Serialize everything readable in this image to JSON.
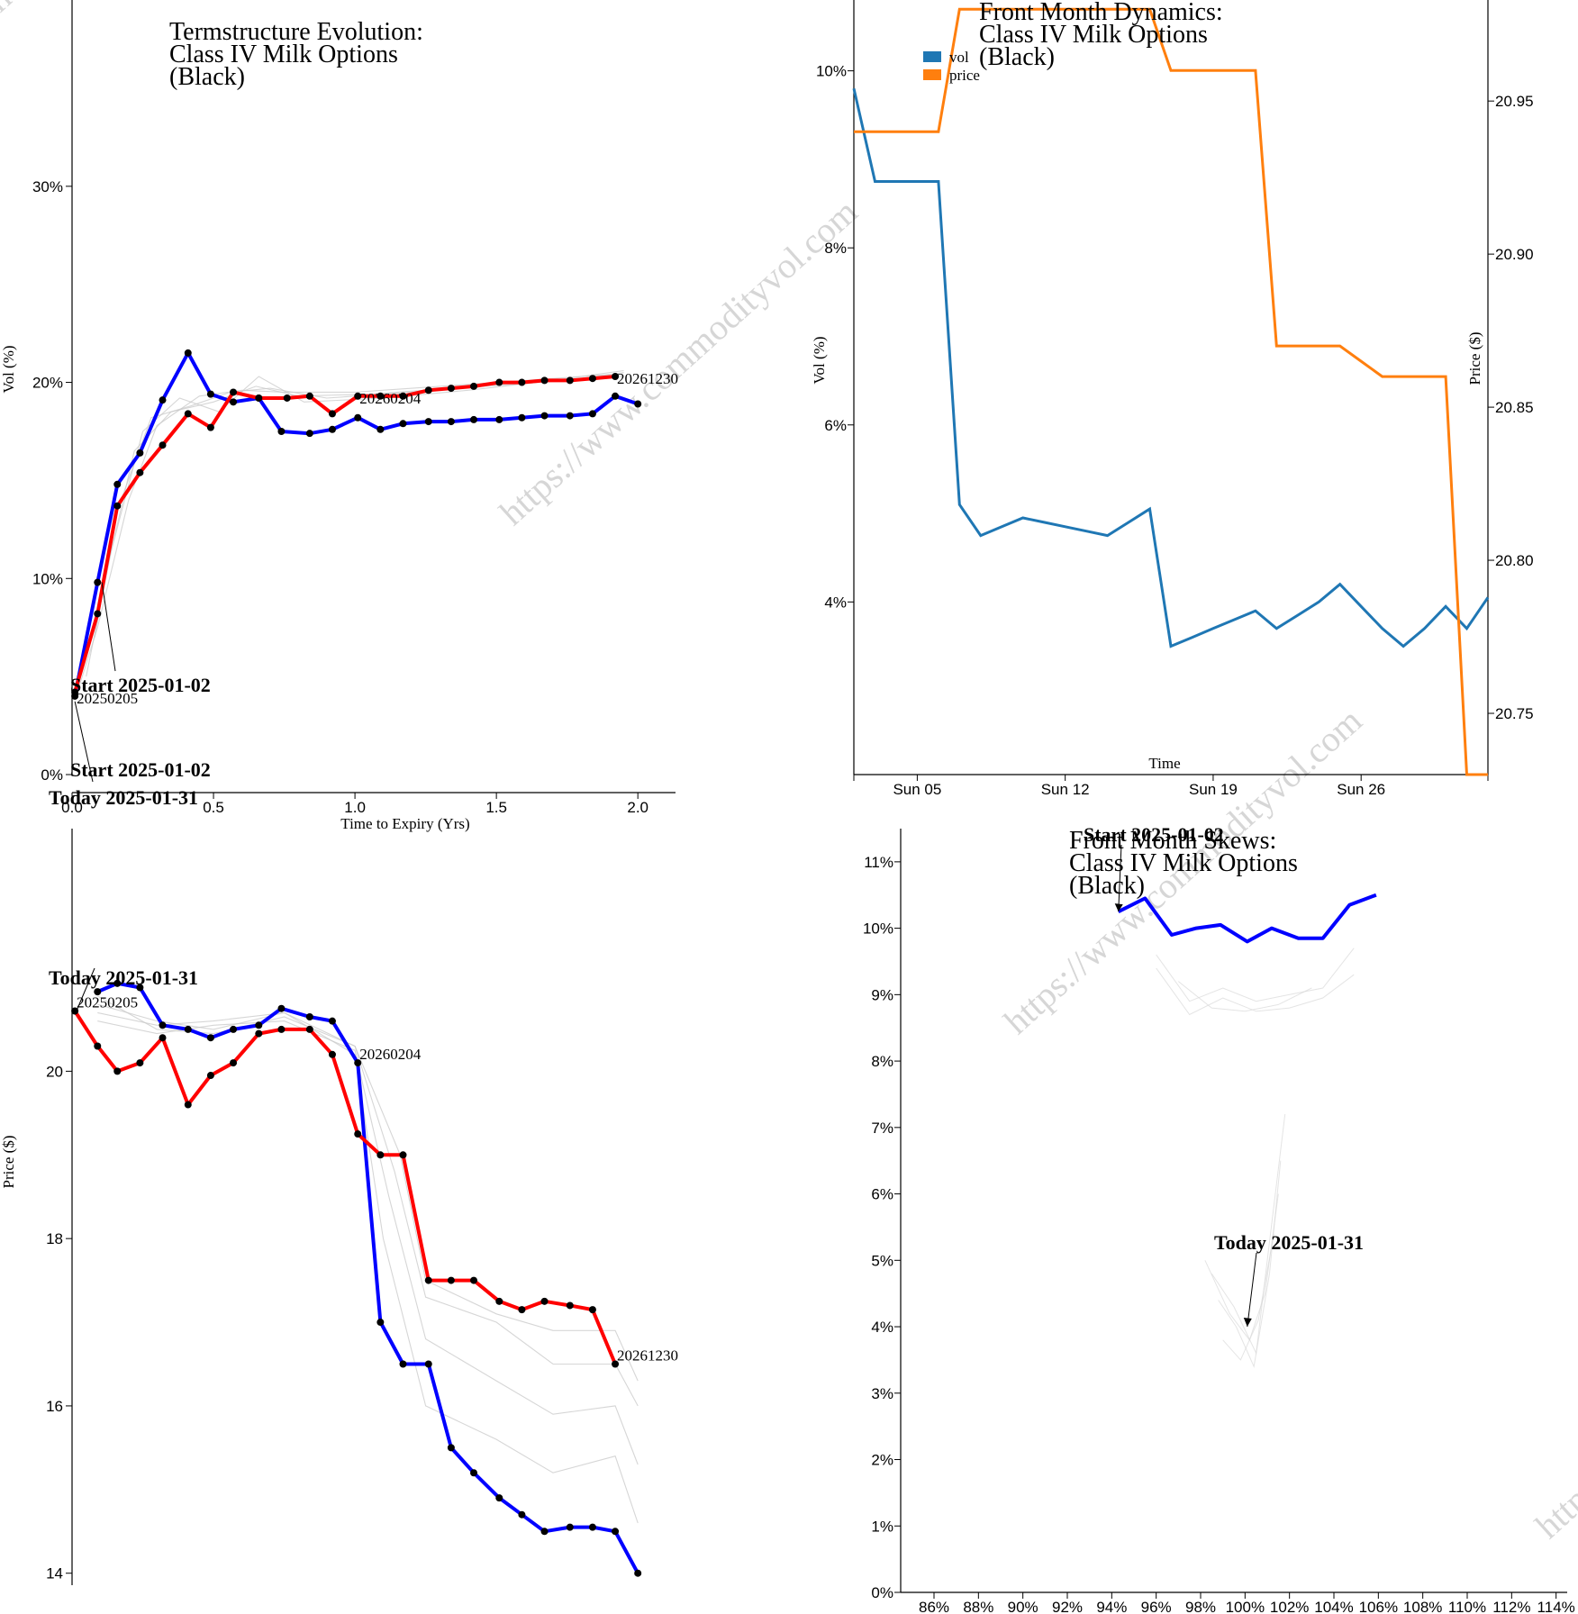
{
  "watermark": "https://www.commodityvol.com",
  "colors": {
    "start": "#0000ff",
    "today": "#ff0000",
    "ghost": "#c8c8c8",
    "vol": "#1f77b4",
    "price": "#ff7f0e"
  },
  "chart_data": [
    {
      "id": "termstructure_vol",
      "type": "line",
      "title": [
        "Termstructure Evolution:",
        "Class IV Milk Options",
        "(Black)"
      ],
      "xlabel": "Time to Expiry (Yrs)",
      "ylabel": "Vol (%)",
      "xlim": [
        0,
        2.2
      ],
      "ylim": [
        0,
        39.5
      ],
      "xticks": [
        {
          "v": 0,
          "label": "0.0"
        },
        {
          "v": 0.5,
          "label": "0.5"
        },
        {
          "v": 1.0,
          "label": "1.0"
        },
        {
          "v": 1.5,
          "label": "1.5"
        },
        {
          "v": 2.0,
          "label": "2.0"
        }
      ],
      "yticks": [
        {
          "v": 0,
          "label": "0%"
        },
        {
          "v": 10,
          "label": "10%"
        },
        {
          "v": 20,
          "label": "20%"
        },
        {
          "v": 30,
          "label": "30%"
        }
      ],
      "series": [
        {
          "role": "start",
          "x": [
            0.01,
            0.09,
            0.16,
            0.24,
            0.32,
            0.41,
            0.49,
            0.57,
            0.66,
            0.74,
            0.84,
            0.92,
            1.01,
            1.09,
            1.17,
            1.26,
            1.34,
            1.42,
            1.51,
            1.59,
            1.67,
            1.76,
            1.84,
            1.92,
            2.0
          ],
          "y": [
            4.0,
            9.8,
            14.8,
            16.4,
            19.1,
            21.5,
            19.4,
            19.0,
            19.2,
            17.5,
            17.4,
            17.6,
            18.2,
            17.6,
            17.9,
            18.0,
            18.0,
            18.1,
            18.1,
            18.2,
            18.3,
            18.3,
            18.4,
            19.3,
            18.9
          ]
        },
        {
          "role": "today",
          "x": [
            0.01,
            0.09,
            0.16,
            0.24,
            0.32,
            0.41,
            0.49,
            0.57,
            0.66,
            0.76,
            0.84,
            0.92,
            1.01,
            1.09,
            1.17,
            1.26,
            1.34,
            1.42,
            1.51,
            1.59,
            1.67,
            1.76,
            1.84,
            1.92
          ],
          "y": [
            4.2,
            8.2,
            13.7,
            15.4,
            16.8,
            18.4,
            17.7,
            19.5,
            19.2,
            19.2,
            19.3,
            18.4,
            19.3,
            19.3,
            19.3,
            19.6,
            19.7,
            19.8,
            20.0,
            20.0,
            20.1,
            20.1,
            20.2,
            20.3
          ]
        }
      ],
      "ghosts": [
        {
          "x": [
            0.01,
            0.09,
            0.2,
            0.3,
            0.45,
            0.6,
            0.75,
            1.0,
            1.3,
            1.6,
            1.9
          ],
          "y": [
            3.8,
            7.5,
            14.0,
            17.8,
            19.3,
            19.6,
            19.5,
            19.5,
            19.8,
            20.1,
            20.4
          ]
        },
        {
          "x": [
            0.01,
            0.1,
            0.22,
            0.35,
            0.5,
            0.65,
            0.8,
            1.05,
            1.35,
            1.65,
            1.95
          ],
          "y": [
            4.0,
            9.0,
            16.5,
            18.5,
            19.0,
            19.8,
            19.3,
            19.4,
            19.7,
            20.0,
            20.3
          ]
        },
        {
          "x": [
            0.05,
            0.14,
            0.25,
            0.38,
            0.52,
            0.66,
            0.82,
            1.1,
            1.4,
            1.7,
            1.95
          ],
          "y": [
            5.0,
            11.5,
            17.5,
            19.2,
            18.5,
            20.3,
            19.0,
            19.2,
            19.6,
            20.1,
            20.6
          ]
        },
        {
          "x": [
            0.08,
            0.16,
            0.28,
            0.42,
            0.56,
            0.7,
            0.9,
            1.2,
            1.5,
            1.8,
            1.95
          ],
          "y": [
            7.0,
            13.5,
            18.2,
            18.8,
            19.5,
            19.7,
            19.2,
            19.5,
            19.9,
            20.2,
            20.5
          ]
        }
      ],
      "annotations": [
        {
          "text": "Start 2025-01-02",
          "x": 0.01,
          "y": 4.0
        },
        {
          "text": "Start 2025-01-02",
          "x": 0.09,
          "y": 9.8
        },
        {
          "text": "Today 2025-01-31",
          "x": 0.01,
          "y": 4.2
        }
      ],
      "labels": [
        {
          "text": "20250205",
          "x": 0.01,
          "y": 4.0
        },
        {
          "text": "20260204",
          "x": 1.01,
          "y": 19.3
        },
        {
          "text": "20261230",
          "x": 1.92,
          "y": 20.3
        }
      ]
    },
    {
      "id": "termstructure_price",
      "type": "line",
      "ylabel": "Price ($)",
      "xlim": [
        0,
        2.2
      ],
      "ylim": [
        13.9,
        22.9
      ],
      "yticks": [
        {
          "v": 14,
          "label": "14"
        },
        {
          "v": 16,
          "label": "16"
        },
        {
          "v": 18,
          "label": "18"
        },
        {
          "v": 20,
          "label": "20"
        }
      ],
      "series": [
        {
          "role": "start",
          "x": [
            0.09,
            0.16,
            0.24,
            0.32,
            0.41,
            0.49,
            0.57,
            0.66,
            0.74,
            0.84,
            0.92,
            1.01,
            1.09,
            1.17,
            1.26,
            1.34,
            1.42,
            1.51,
            1.59,
            1.67,
            1.76,
            1.84,
            1.92,
            2.0
          ],
          "y": [
            20.95,
            21.05,
            21.0,
            20.55,
            20.5,
            20.4,
            20.5,
            20.55,
            20.75,
            20.65,
            20.6,
            20.1,
            17.0,
            16.5,
            16.5,
            15.5,
            15.2,
            14.9,
            14.7,
            14.5,
            14.55,
            14.55,
            14.5,
            14.0
          ]
        },
        {
          "role": "today",
          "x": [
            0.01,
            0.09,
            0.16,
            0.24,
            0.32,
            0.41,
            0.49,
            0.57,
            0.66,
            0.74,
            0.84,
            0.92,
            1.01,
            1.09,
            1.17,
            1.26,
            1.34,
            1.42,
            1.51,
            1.59,
            1.67,
            1.76,
            1.84,
            1.92
          ],
          "y": [
            20.72,
            20.3,
            20.0,
            20.1,
            20.4,
            19.6,
            19.95,
            20.1,
            20.45,
            20.5,
            20.5,
            20.2,
            19.25,
            19.0,
            19.0,
            17.5,
            17.5,
            17.5,
            17.25,
            17.15,
            17.25,
            17.2,
            17.15,
            16.5
          ]
        }
      ],
      "ghosts": [
        {
          "x": [
            0.09,
            0.3,
            0.5,
            0.75,
            1.0,
            1.1,
            1.25,
            1.5,
            1.7,
            1.92,
            2.0
          ],
          "y": [
            20.8,
            20.6,
            20.5,
            20.7,
            20.2,
            18.0,
            16.0,
            15.6,
            15.2,
            15.4,
            14.6
          ]
        },
        {
          "x": [
            0.09,
            0.3,
            0.5,
            0.75,
            1.0,
            1.12,
            1.25,
            1.5,
            1.7,
            1.92,
            2.0
          ],
          "y": [
            20.6,
            20.45,
            20.55,
            20.6,
            20.25,
            18.5,
            16.8,
            16.3,
            15.9,
            16.0,
            15.3
          ]
        },
        {
          "x": [
            0.09,
            0.3,
            0.5,
            0.75,
            1.0,
            1.14,
            1.25,
            1.5,
            1.7,
            1.92,
            2.0
          ],
          "y": [
            20.9,
            20.5,
            20.45,
            20.65,
            20.3,
            18.8,
            17.3,
            17.0,
            16.5,
            16.5,
            16.0
          ]
        },
        {
          "x": [
            0.09,
            0.3,
            0.5,
            0.75,
            1.0,
            1.16,
            1.25,
            1.5,
            1.7,
            1.92,
            2.0
          ],
          "y": [
            20.7,
            20.55,
            20.6,
            20.7,
            20.3,
            19.0,
            17.5,
            17.1,
            16.9,
            16.9,
            16.3
          ]
        }
      ],
      "annotations": [
        {
          "text": "Today 2025-01-31",
          "x": 0.01,
          "y": 20.72
        }
      ],
      "labels": [
        {
          "text": "20250205",
          "x": 0.01,
          "y": 20.72
        },
        {
          "text": "20260204",
          "x": 1.01,
          "y": 20.1
        },
        {
          "text": "20261230",
          "x": 1.92,
          "y": 16.5
        }
      ]
    },
    {
      "id": "front_month_dynamics",
      "type": "line",
      "title": [
        "Front Month Dynamics:",
        "Class IV Milk Options",
        "(Black)"
      ],
      "xlabel": "Time",
      "ylabel": "Vol (%)",
      "y2label": "Price ($)",
      "xlim": [
        1,
        31
      ],
      "ylim": [
        2.05,
        10.8
      ],
      "y2lim": [
        20.73,
        20.983
      ],
      "xticks": [
        {
          "v": 4,
          "label": "Sun 05"
        },
        {
          "v": 11,
          "label": "Sun 12"
        },
        {
          "v": 18,
          "label": "Sun 19"
        },
        {
          "v": 25,
          "label": "Sun 26"
        }
      ],
      "yticks": [
        {
          "v": 4,
          "label": "4%"
        },
        {
          "v": 6,
          "label": "6%"
        },
        {
          "v": 8,
          "label": "8%"
        },
        {
          "v": 10,
          "label": "10%"
        }
      ],
      "y2ticks": [
        {
          "v": 20.75,
          "label": "20.75"
        },
        {
          "v": 20.8,
          "label": "20.80"
        },
        {
          "v": 20.85,
          "label": "20.85"
        },
        {
          "v": 20.9,
          "label": "20.90"
        },
        {
          "v": 20.95,
          "label": "20.95"
        }
      ],
      "legend": [
        {
          "name": "vol",
          "color": "#1f77b4"
        },
        {
          "name": "price",
          "color": "#ff7f0e"
        }
      ],
      "series": [
        {
          "name": "vol",
          "x": [
            1,
            2,
            3,
            4,
            5,
            6,
            7,
            8,
            9,
            10,
            11,
            12,
            13,
            14,
            15,
            16,
            17,
            18,
            19,
            20,
            21,
            22,
            23,
            24,
            25,
            26,
            27,
            28,
            29,
            30,
            31
          ],
          "y": [
            9.8,
            8.75,
            8.75,
            8.75,
            8.75,
            5.1,
            4.75,
            4.85,
            4.95,
            4.9,
            4.85,
            4.8,
            4.75,
            4.9,
            5.05,
            3.5,
            3.6,
            3.7,
            3.8,
            3.9,
            3.7,
            3.85,
            4.0,
            4.2,
            3.95,
            3.7,
            3.5,
            3.7,
            3.95,
            3.7,
            4.05
          ]
        },
        {
          "name": "price",
          "x": [
            1,
            2,
            3,
            4,
            5,
            6,
            7,
            8,
            9,
            10,
            11,
            12,
            13,
            14,
            15,
            16,
            17,
            18,
            19,
            20,
            21,
            22,
            23,
            24,
            25,
            26,
            27,
            28,
            29,
            30,
            31
          ],
          "y": [
            20.94,
            20.94,
            20.94,
            20.94,
            20.94,
            20.98,
            20.98,
            20.98,
            20.98,
            20.98,
            20.98,
            20.98,
            20.98,
            20.98,
            20.98,
            20.96,
            20.96,
            20.96,
            20.96,
            20.96,
            20.87,
            20.87,
            20.87,
            20.87,
            20.865,
            20.86,
            20.86,
            20.86,
            20.86,
            20.73,
            20.73
          ]
        }
      ]
    },
    {
      "id": "front_month_skews",
      "type": "line",
      "title": [
        "Front Month Skews:",
        "Class IV Milk Options",
        "(Black)"
      ],
      "xlim": [
        84.5,
        114.5
      ],
      "ylim": [
        0,
        11.5
      ],
      "xticks": [
        {
          "v": 86,
          "label": "86%"
        },
        {
          "v": 88,
          "label": "88%"
        },
        {
          "v": 90,
          "label": "90%"
        },
        {
          "v": 92,
          "label": "92%"
        },
        {
          "v": 94,
          "label": "94%"
        },
        {
          "v": 96,
          "label": "96%"
        },
        {
          "v": 98,
          "label": "98%"
        },
        {
          "v": 100,
          "label": "100%"
        },
        {
          "v": 102,
          "label": "102%"
        },
        {
          "v": 104,
          "label": "104%"
        },
        {
          "v": 106,
          "label": "106%"
        },
        {
          "v": 108,
          "label": "108%"
        },
        {
          "v": 110,
          "label": "110%"
        },
        {
          "v": 112,
          "label": "112%"
        },
        {
          "v": 114,
          "label": "114%"
        }
      ],
      "yticks": [
        {
          "v": 0,
          "label": "0%"
        },
        {
          "v": 1,
          "label": "1%"
        },
        {
          "v": 2,
          "label": "2%"
        },
        {
          "v": 3,
          "label": "3%"
        },
        {
          "v": 4,
          "label": "4%"
        },
        {
          "v": 5,
          "label": "5%"
        },
        {
          "v": 6,
          "label": "6%"
        },
        {
          "v": 7,
          "label": "7%"
        },
        {
          "v": 8,
          "label": "8%"
        },
        {
          "v": 9,
          "label": "9%"
        },
        {
          "v": 10,
          "label": "10%"
        },
        {
          "v": 11,
          "label": "11%"
        }
      ],
      "series": [
        {
          "role": "start",
          "x": [
            94.3,
            95.5,
            96.7,
            97.8,
            98.9,
            100.1,
            101.2,
            102.4,
            103.5,
            104.7,
            105.9
          ],
          "y": [
            10.25,
            10.45,
            9.9,
            10.0,
            10.05,
            9.8,
            10.0,
            9.85,
            9.85,
            10.35,
            10.5
          ]
        }
      ],
      "ghosts": [
        {
          "x": [
            96.0,
            97.5,
            99.0,
            100.5,
            102.0,
            103.5,
            104.9
          ],
          "y": [
            9.4,
            8.7,
            8.95,
            8.75,
            8.8,
            8.95,
            9.3
          ]
        },
        {
          "x": [
            96.0,
            97.5,
            99.0,
            100.5,
            102.0,
            103.5,
            104.9
          ],
          "y": [
            9.6,
            8.9,
            9.1,
            8.9,
            9.0,
            9.1,
            9.7
          ]
        },
        {
          "x": [
            97.0,
            98.5,
            100.0,
            101.5,
            103.0
          ],
          "y": [
            9.2,
            8.8,
            8.75,
            8.85,
            9.1
          ]
        },
        {
          "x": [
            98.5,
            99.5,
            100.5,
            101.0,
            101.8
          ],
          "y": [
            4.8,
            4.3,
            3.6,
            5.0,
            7.2
          ]
        },
        {
          "x": [
            98.8,
            99.6,
            100.4,
            101.1,
            101.6
          ],
          "y": [
            4.4,
            4.0,
            3.4,
            4.8,
            6.5
          ]
        },
        {
          "x": [
            98.2,
            99.3,
            100.2,
            100.9,
            101.5
          ],
          "y": [
            5.0,
            4.2,
            3.8,
            4.5,
            6.0
          ]
        },
        {
          "x": [
            99.0,
            99.8,
            100.6,
            101.3
          ],
          "y": [
            3.8,
            3.5,
            4.1,
            5.4
          ]
        }
      ],
      "annotations": [
        {
          "text": "Start 2025-01-02",
          "x": 94.3,
          "y": 10.25
        },
        {
          "text": "Today 2025-01-31",
          "x": 100.1,
          "y": 4.0
        }
      ]
    }
  ]
}
